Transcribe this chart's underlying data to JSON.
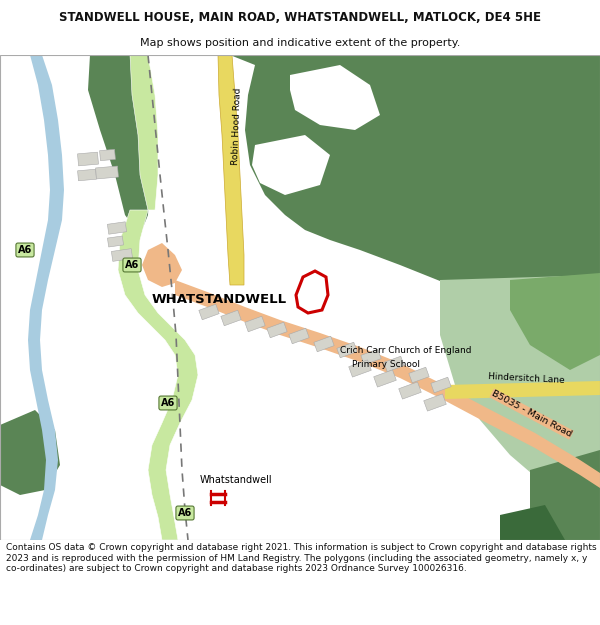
{
  "title_line1": "STANDWELL HOUSE, MAIN ROAD, WHATSTANDWELL, MATLOCK, DE4 5HE",
  "title_line2": "Map shows position and indicative extent of the property.",
  "footer": "Contains OS data © Crown copyright and database right 2021. This information is subject to Crown copyright and database rights 2023 and is reproduced with the permission of HM Land Registry. The polygons (including the associated geometry, namely x, y co-ordinates) are subject to Crown copyright and database rights 2023 Ordnance Survey 100026316.",
  "green_dark": "#5a8555",
  "green_mid": "#7aaa6a",
  "green_light": "#b0cea8",
  "blue_river": "#a8cce0",
  "road_a6_color": "#c8e8a0",
  "road_main_color": "#f0b888",
  "road_yellow": "#e8d860",
  "plot_red": "#cc0000",
  "text_dark": "#111111",
  "building_color": "#d4d4cc",
  "rail_color": "#777777"
}
